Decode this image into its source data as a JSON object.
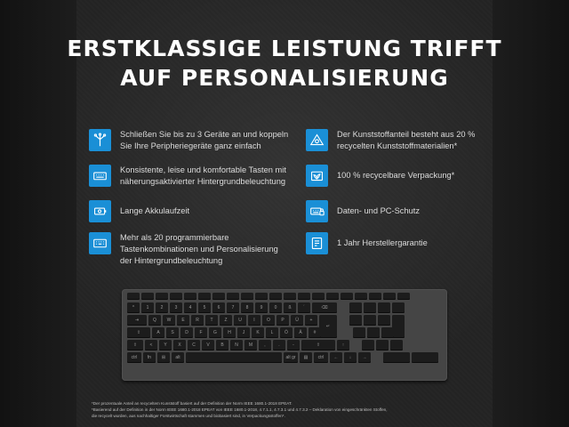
{
  "headline": {
    "line1": "ERSTKLASSIGE LEISTUNG TRIFFT",
    "line2": "AUF PERSONALISIERUNG"
  },
  "features_left": [
    {
      "icon": "multi-device-icon",
      "lines": [
        "Schließen Sie bis zu 3 Geräte an und koppeln",
        "Sie Ihre Peripheriegeräte ganz einfach"
      ]
    },
    {
      "icon": "keyboard-backlight-icon",
      "lines": [
        "Konsistente, leise und komfortable Tasten mit",
        "näherungsaktivierter Hintergrundbeleuchtung"
      ]
    },
    {
      "icon": "battery-icon",
      "lines": [
        "Lange Akkulaufzeit"
      ]
    },
    {
      "icon": "programmable-keys-icon",
      "lines": [
        "Mehr als 20 programmierbare",
        "Tastenkombinationen und Personalisierung",
        "der Hintergrundbeleuchtung"
      ]
    }
  ],
  "features_right": [
    {
      "icon": "recycle-triangle-icon",
      "lines": [
        "Der Kunststoffanteil besteht aus 20 %",
        "recycelten Kunststoffmaterialien*"
      ]
    },
    {
      "icon": "recyclable-packaging-icon",
      "lines": [
        "100 % recycelbare Verpackung*"
      ]
    },
    {
      "icon": "data-protection-icon",
      "lines": [
        "Daten- und PC-Schutz"
      ]
    },
    {
      "icon": "warranty-icon",
      "lines": [
        "1 Jahr Herstellergarantie"
      ]
    }
  ],
  "keyboard_rows": {
    "row1": [
      "",
      "",
      "",
      "",
      "",
      "",
      "",
      "",
      "",
      "",
      "",
      "",
      "",
      "",
      "",
      "",
      "",
      "",
      "",
      ""
    ],
    "row2": [
      "^",
      "1",
      "2",
      "3",
      "4",
      "5",
      "6",
      "7",
      "8",
      "9",
      "0",
      "ß",
      "´",
      "⌫",
      "",
      "",
      "",
      ""
    ],
    "row3": [
      "⇥",
      "Q",
      "W",
      "E",
      "R",
      "T",
      "Z",
      "U",
      "I",
      "O",
      "P",
      "Ü",
      "+",
      "↵",
      "",
      "",
      "",
      ""
    ],
    "row4": [
      "⇪",
      "A",
      "S",
      "D",
      "F",
      "G",
      "H",
      "J",
      "K",
      "L",
      "Ö",
      "Ä",
      "#",
      "",
      "",
      "",
      ""
    ],
    "row5": [
      "⇧",
      "<",
      "Y",
      "X",
      "C",
      "V",
      "B",
      "N",
      "M",
      ",",
      ".",
      "-",
      "⇧",
      "↑",
      "",
      "",
      ""
    ],
    "row6": [
      "ctrl",
      "fn",
      "⊞",
      "alt",
      "",
      "alt gr",
      "▤",
      "ctrl",
      "←",
      "↓",
      "→",
      "",
      ""
    ]
  },
  "footnotes": [
    "*Der prozentuale Anteil an recyceltem Kunststoff basiert auf der Definition der Norm IEEE 1680.1-2018 EPEAT.",
    "*Basierend auf der Definition in der Norm IEEE 1680.1-2018 EPEAT von IEEE 1680.1-2018, 4.7.1.1, 4.7.3.1 und 4.7.3.2 – Deklaration von eingeschränkten Stoffen,",
    "die recycelt wurden, aus nachhaltiger Forstwirtschaft stammen und biobasiert sind, in Verpackungsstoffen*."
  ],
  "colors": {
    "accent": "#1a8fd6",
    "background": "#1e1e1e"
  }
}
